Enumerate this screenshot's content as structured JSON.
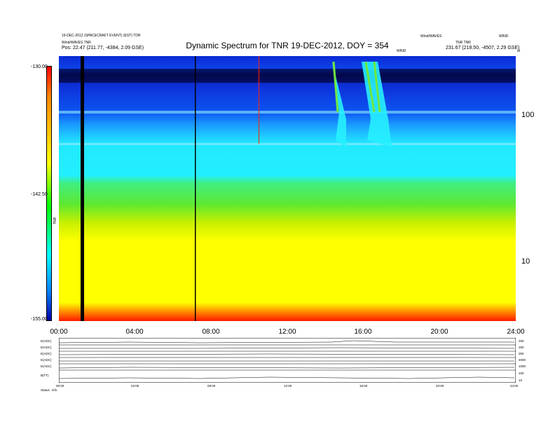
{
  "header": {
    "title": "Dynamic Spectrum for TNR 19-DEC-2012, DOY = 354",
    "left_line1": "19-DEC-2012 (SPACECRAFT EVENT) (EST) TDR",
    "left_line2": "Wind/WAVES TNR",
    "left_label": "Pos:",
    "left_pos": "22.47 (211.77, -4384, 2.09 GSE)",
    "mid_small": "WIND",
    "right_line1": "Wind/WAVES",
    "right_line2": "WIND",
    "right_line3": "TNR TNR",
    "right_pos": "231.67 (218.50, -4507, 2.29 GSE)",
    "right_edge": "dr"
  },
  "colorbar": {
    "top_label": "-130.00",
    "mid_label": "-142.50",
    "bottom_label": "-155.00",
    "axis_label": "TNR"
  },
  "chart_data": {
    "type": "heatmap",
    "title": "Dynamic Spectrum for TNR 19-DEC-2012, DOY = 354",
    "x_ticks": [
      "00:00",
      "04:00",
      "08:00",
      "12:00",
      "16:00",
      "20:00",
      "24:00"
    ],
    "y_ticks": [
      "100",
      "10"
    ],
    "y_scale": "log",
    "color_range": [
      -155.0,
      -130.0
    ],
    "bands": [
      {
        "name": "deep-blue",
        "from_freq": 300,
        "to_freq": 120,
        "color": "#0a2ad6"
      },
      {
        "name": "blue-cyan",
        "from_freq": 120,
        "to_freq": 60,
        "color": "#1a8cff"
      },
      {
        "name": "cyan",
        "from_freq": 60,
        "to_freq": 40,
        "color": "#22f0ff"
      },
      {
        "name": "green",
        "from_freq": 40,
        "to_freq": 25,
        "color": "#50ea30"
      },
      {
        "name": "yellow-green",
        "from_freq": 25,
        "to_freq": 18,
        "color": "#d4f000"
      },
      {
        "name": "yellow",
        "from_freq": 18,
        "to_freq": 5,
        "color": "#ffff00"
      },
      {
        "name": "red",
        "from_freq": 5,
        "to_freq": 4,
        "color": "#ff2a00"
      }
    ],
    "data_gaps_hours": [
      1.2,
      7.1
    ],
    "bursts_hours": [
      14.7,
      16.3,
      16.7
    ],
    "bottom_panels": {
      "labels": [
        "E(ADC)",
        "E(ADC)",
        "E(ADC)",
        "E(ADC)",
        "E(ADC)",
        "B(TT)"
      ],
      "right_ticks": [
        "250",
        "250",
        "250",
        "2000",
        "1000",
        "100",
        "10"
      ]
    }
  },
  "bottom_axis": {
    "ticks": [
      "00:00",
      "04:00",
      "08:00",
      "12:00",
      "16:00",
      "20:00",
      "24:00"
    ]
  },
  "footer": {
    "label": "Status",
    "value": "info"
  }
}
